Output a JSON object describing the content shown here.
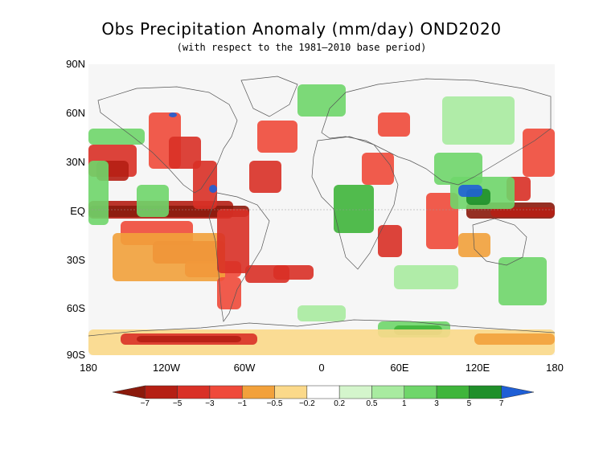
{
  "title": "Obs Precipitation Anomaly (mm/day) OND2020",
  "subtitle": "(with respect to the 1981–2010 base period)",
  "axes": {
    "y_labels": [
      "90N",
      "60N",
      "30N",
      "EQ",
      "30S",
      "60S",
      "90S"
    ],
    "x_labels": [
      "180",
      "120W",
      "60W",
      "0",
      "60E",
      "120E",
      "180"
    ]
  },
  "colorbar": {
    "labels": [
      "−7",
      "−5",
      "−3",
      "−1",
      "−0.5",
      "−0.2",
      "0.2",
      "0.5",
      "1",
      "3",
      "5",
      "7"
    ],
    "colors": [
      "#8b1a0c",
      "#b51f14",
      "#d93026",
      "#ef4a3a",
      "#f2a13b",
      "#fbd98a",
      "#ffffff",
      "#d4f5cc",
      "#a8eba0",
      "#6fd66a",
      "#3fb53b",
      "#1f8f2a",
      "#1f5fd6"
    ],
    "neutral_color": "#f5f5f5"
  }
}
